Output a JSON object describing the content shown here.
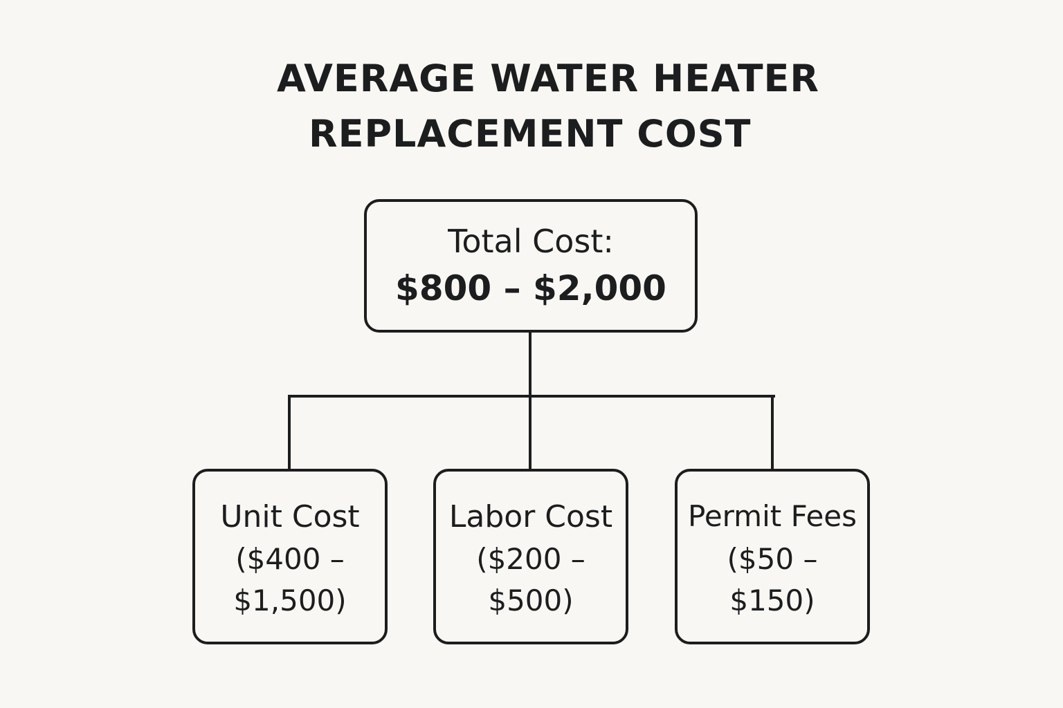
{
  "title": {
    "line1": "AVERAGE WATER HEATER",
    "line2": "REPLACEMENT COST"
  },
  "root": {
    "label": "Total Cost:",
    "value": "$800 – $2,000"
  },
  "children": [
    {
      "label": "Unit Cost",
      "range_start": "($400 –",
      "range_end": "$1,500)"
    },
    {
      "label": "Labor Cost",
      "range_start": "($200 –",
      "range_end": "$500)"
    },
    {
      "label": "Permit Fees",
      "range_start": "($50 –",
      "range_end": "$150)"
    }
  ]
}
